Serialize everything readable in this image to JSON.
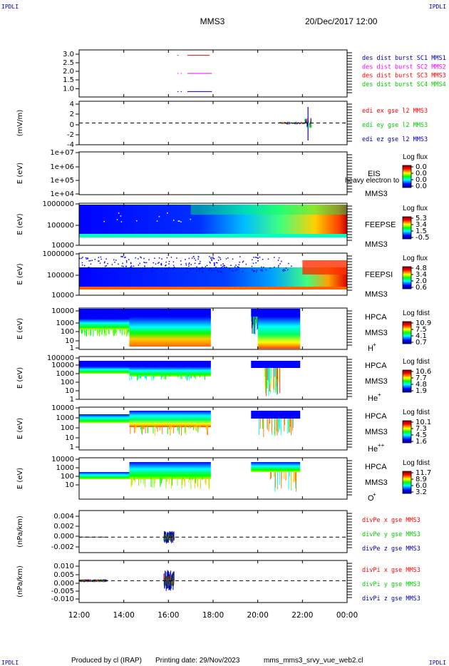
{
  "header": {
    "corner_label": "IPDLI",
    "spacecraft": "MMS3",
    "datetime": "20/Dec/2017 12:00"
  },
  "footer": {
    "produced_by": "Produced by cl (IRAP)",
    "printing_date": "Printing date: 29/Nov/2023",
    "script_name": "mms_mms3_srvy_vue_web2.cl"
  },
  "colors": {
    "series_red": "#ff0000",
    "series_green": "#00cc00",
    "series_blue": "#0000ff",
    "series_magenta": "#ff00ff",
    "label_blue": "#0000aa"
  },
  "chart_data": {
    "type": "multi-panel time series / spectrogram",
    "x_axis": {
      "range": [
        "12:00",
        "00:00"
      ],
      "tick_labels": [
        "12:00",
        "14:00",
        "16:00",
        "18:00",
        "20:00",
        "22:00",
        "00:00"
      ],
      "tick_hours": [
        12,
        14,
        16,
        18,
        20,
        22,
        24
      ]
    },
    "panels": [
      {
        "id": "burst",
        "type": "line",
        "ylabel": "",
        "yticks": [
          "3.0",
          "2.5",
          "2.0",
          "1.5",
          "1.0"
        ],
        "ytick_values": [
          3.0,
          2.5,
          2.0,
          1.5,
          1.0
        ],
        "ylim": [
          0.7,
          3.3
        ],
        "legend": [
          {
            "text": "des dist burst SC1 MMS1",
            "color": "#0000aa"
          },
          {
            "text": "des dist burst SC2 MMS2",
            "color": "#ff00ff"
          },
          {
            "text": "des dist burst SC3 MMS3",
            "color": "#ff0000"
          },
          {
            "text": "des dist burst SC4 MMS4",
            "color": "#00cc00"
          }
        ],
        "series": [
          {
            "name": "des dist burst SC3 MMS3",
            "color": "#ff0000",
            "y": 3.0,
            "intervals": [
              [
                16.4,
                16.45
              ],
              [
                16.85,
                17.85
              ]
            ]
          },
          {
            "name": "des dist burst SC2 MMS2",
            "color": "#ff00ff",
            "y": 2.0,
            "intervals": [
              [
                16.4,
                16.45
              ],
              [
                16.55,
                16.6
              ],
              [
                16.85,
                17.95
              ]
            ]
          },
          {
            "name": "des dist burst SC1 MMS1",
            "color": "#0000aa",
            "y": 1.0,
            "intervals": [
              [
                16.4,
                16.45
              ],
              [
                16.55,
                16.6
              ],
              [
                16.85,
                17.95
              ]
            ]
          }
        ]
      },
      {
        "id": "edi",
        "type": "line",
        "ylabel": "(mV/m)",
        "yticks": [
          "4",
          "2",
          "0",
          "-2",
          "-4"
        ],
        "ytick_values": [
          4,
          2,
          0,
          -2,
          -4
        ],
        "ylim": [
          -4.5,
          4.5
        ],
        "zero_line": true,
        "legend": [
          {
            "text": "edi ex gse l2 MMS3",
            "color": "#ff0000"
          },
          {
            "text": "edi ey gse l2 MMS3",
            "color": "#00cc00"
          },
          {
            "text": "edi ez gse l2 MMS3",
            "color": "#0000aa"
          }
        ],
        "activity_window": [
          21.0,
          22.4
        ]
      },
      {
        "id": "eis",
        "type": "heatmap",
        "ylabel": "E (eV)",
        "yticks": [
          "1e+07",
          "1e+06",
          "1e+05",
          "1e+04"
        ],
        "labels": [
          "EIS",
          "MMS3"
        ],
        "overlay_text": "heavy electron to",
        "colorbar": {
          "title": "Log flux",
          "ticks": [
            "0.0",
            "0.0",
            "0.0",
            "0.0"
          ]
        }
      },
      {
        "id": "feepse",
        "type": "heatmap",
        "ylabel": "E (eV)",
        "yticks": [
          "1000000",
          "100000",
          "10000"
        ],
        "labels": [
          "FEEPSE",
          "MMS3"
        ],
        "colorbar": {
          "title": "Log flux",
          "ticks": [
            "5.3",
            "3.4",
            "1.5",
            "-0.5"
          ]
        }
      },
      {
        "id": "feepsi",
        "type": "heatmap",
        "ylabel": "E (eV)",
        "yticks": [
          "1000000",
          "100000",
          "10000"
        ],
        "labels": [
          "FEEPSI",
          "MMS3"
        ],
        "colorbar": {
          "title": "Log flux",
          "ticks": [
            "4.8",
            "3.4",
            "2.0",
            "0.6"
          ]
        }
      },
      {
        "id": "hpca_h",
        "type": "heatmap",
        "ylabel": "E (eV)",
        "yticks": [
          "10000",
          "1000",
          "100",
          "10",
          "1"
        ],
        "labels": [
          "HPCA",
          "MMS3"
        ],
        "species": "H",
        "charge": "+",
        "colorbar": {
          "title": "Log fdist",
          "ticks": [
            "10.9",
            "7.5",
            "4.1",
            "0.7"
          ]
        }
      },
      {
        "id": "hpca_he1",
        "type": "heatmap",
        "ylabel": "E (eV)",
        "yticks": [
          "100000",
          "10000",
          "1000",
          "100",
          "10",
          "1"
        ],
        "labels": [
          "HPCA",
          "MMS3"
        ],
        "species": "He",
        "charge": "+",
        "colorbar": {
          "title": "Log fdist",
          "ticks": [
            "10.6",
            "7.7",
            "4.8",
            "1.9"
          ]
        }
      },
      {
        "id": "hpca_he2",
        "type": "heatmap",
        "ylabel": "E (eV)",
        "yticks": [
          "10000",
          "1000",
          "100",
          "10",
          "1"
        ],
        "labels": [
          "HPCA",
          "MMS3"
        ],
        "species": "He",
        "charge": "++",
        "colorbar": {
          "title": "Log fdist",
          "ticks": [
            "10.1",
            "7.3",
            "4.5",
            "1.6"
          ]
        }
      },
      {
        "id": "hpca_o",
        "type": "heatmap",
        "ylabel": "E (eV)",
        "yticks": [
          "10000",
          "1000",
          "100",
          "10"
        ],
        "labels": [
          "HPCA",
          "MMS3"
        ],
        "species": "O",
        "charge": "+",
        "colorbar": {
          "title": "Log fdist",
          "ticks": [
            "11.7",
            "8.9",
            "6.0",
            "3.2"
          ]
        }
      },
      {
        "id": "divpe",
        "type": "line",
        "ylabel": "(nPa/km)",
        "yticks": [
          "0.004",
          "0.002",
          "0.000",
          "-0.002"
        ],
        "ytick_values": [
          0.004,
          0.002,
          0.0,
          -0.002
        ],
        "ylim": [
          -0.0028,
          0.0048
        ],
        "zero_line": true,
        "legend": [
          {
            "text": "divPe x gse MMS3",
            "color": "#ff0000"
          },
          {
            "text": "divPe y gse MMS3",
            "color": "#00cc00"
          },
          {
            "text": "divPe z gse MMS3",
            "color": "#0000aa"
          }
        ]
      },
      {
        "id": "divpi",
        "type": "line",
        "ylabel": "(nPa/km)",
        "yticks": [
          "0.010",
          "0.005",
          "0.000",
          "-0.005",
          "-0.010"
        ],
        "ytick_values": [
          0.01,
          0.005,
          0.0,
          -0.005,
          -0.01
        ],
        "ylim": [
          -0.0135,
          0.0125
        ],
        "zero_line": true,
        "legend": [
          {
            "text": "divPi x gse MMS3",
            "color": "#ff0000"
          },
          {
            "text": "divPi y gse MMS3",
            "color": "#00cc00"
          },
          {
            "text": "divPi z gse MMS3",
            "color": "#0000aa"
          }
        ]
      }
    ]
  }
}
